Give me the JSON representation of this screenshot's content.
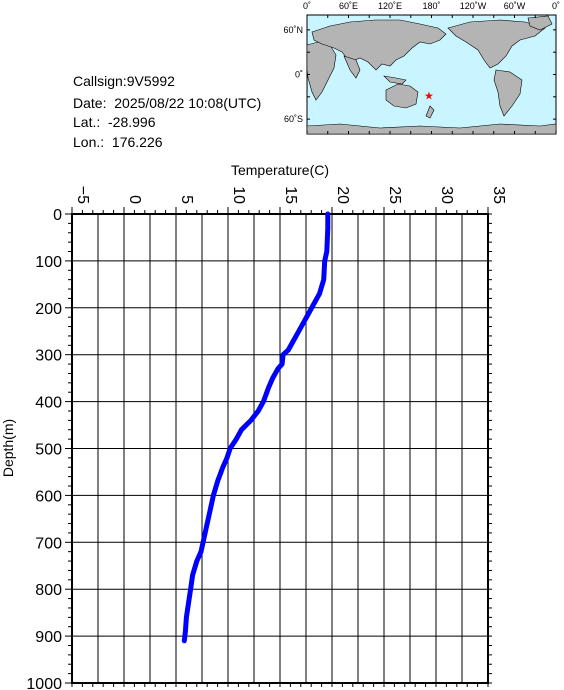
{
  "info": {
    "callsign": "Callsign:9V5992",
    "date": "Date:  2025/08/22 10:08(UTC)",
    "lat": "Lat.:  -28.996",
    "lon": "Lon.:  176.226"
  },
  "map": {
    "lon_labels": [
      "0˚",
      "60˚E",
      "120˚E",
      "180˚",
      "120˚W",
      "60˚W",
      "0˚"
    ],
    "lat_labels": [
      "60˚N",
      "0˚",
      "60˚S"
    ],
    "marker_lat": -28.996,
    "marker_lon": 176.226,
    "colors": {
      "ocean": "#c8f5ff",
      "land": "#b4b4b4",
      "marker": "#ff0000"
    }
  },
  "chart_data": {
    "type": "line",
    "xlabel": "Temperature(C)",
    "ylabel": "Depth(m)",
    "xlim": [
      -5,
      35
    ],
    "ylim": [
      1000,
      0
    ],
    "x_ticks": [
      "-5",
      "0",
      "5",
      "10",
      "15",
      "20",
      "25",
      "30",
      "35"
    ],
    "y_ticks": [
      "0",
      "100",
      "200",
      "300",
      "400",
      "500",
      "600",
      "700",
      "800",
      "900",
      "1000"
    ],
    "grid": true,
    "line_color": "#0000ff",
    "series": [
      {
        "x": [
          19.6,
          19.6,
          19.5,
          19.3,
          19.2,
          18.8,
          18.3,
          17.8,
          17.3,
          16.8,
          16.3,
          15.8,
          15.3,
          15.2,
          14.8,
          14.3,
          13.9,
          13.4,
          12.9,
          12.2,
          11.3,
          10.8,
          10.2,
          9.9,
          9.5,
          9.0,
          8.6,
          8.3,
          8.0,
          7.7,
          7.4,
          7.0,
          6.6,
          6.4,
          6.2,
          6.0,
          5.9,
          5.8
        ],
        "y": [
          0,
          30,
          80,
          100,
          140,
          170,
          190,
          210,
          230,
          250,
          270,
          290,
          300,
          320,
          330,
          350,
          370,
          400,
          420,
          440,
          460,
          480,
          500,
          520,
          540,
          570,
          600,
          630,
          660,
          690,
          720,
          740,
          770,
          800,
          830,
          860,
          890,
          910
        ]
      }
    ]
  }
}
